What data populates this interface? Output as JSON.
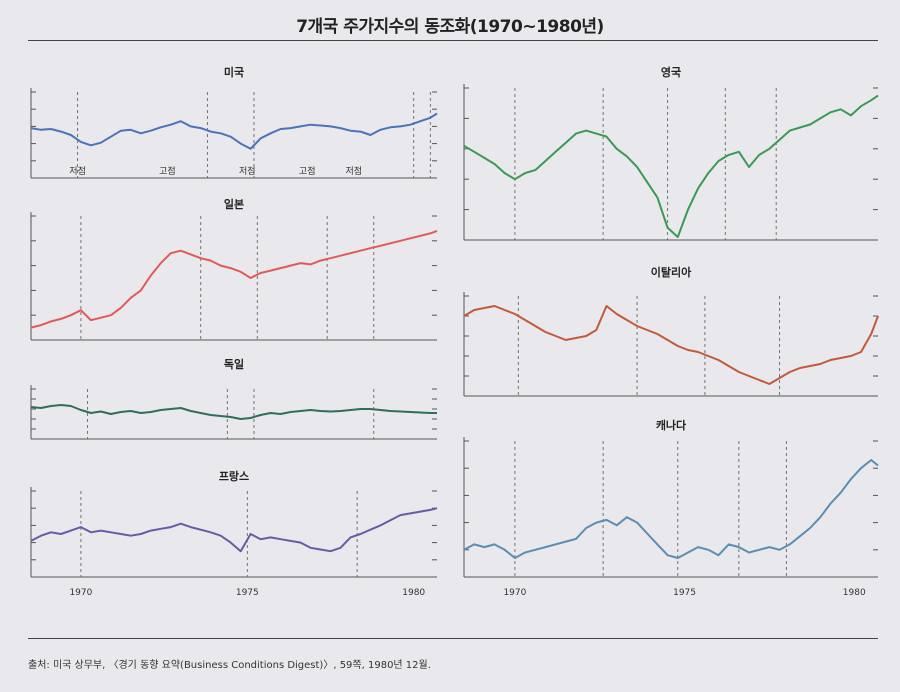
{
  "title": "7개국 주가지수의 동조화(1970~1980년)",
  "source": "출처: 미국 상무부, 〈경기 동향 요약(Business Conditions Digest)〉, 59쪽, 1980년 12월.",
  "colors": {
    "us": "#4c72b8",
    "japan": "#e05a5a",
    "germany": "#2f6e5a",
    "france": "#6a5aa6",
    "uk": "#3a9a55",
    "italy": "#c25a3a",
    "canada": "#5b8eb0"
  },
  "chart_data": [
    {
      "type": "line",
      "title": "미국",
      "x_range": [
        1968.5,
        1980.7
      ],
      "recession_lines": [
        1969.9,
        1973.8,
        1975.2,
        1980.0,
        1980.5,
        1981.0
      ],
      "phase_annotations": [
        {
          "x": 1969.9,
          "text": "저점"
        },
        {
          "x": 1972.6,
          "text": "고점"
        },
        {
          "x": 1975.0,
          "text": "저점"
        },
        {
          "x": 1976.8,
          "text": "고점"
        },
        {
          "x": 1978.2,
          "text": "저점"
        }
      ],
      "series": [
        {
          "x": [
            1968.5,
            1968.8,
            1969.1,
            1969.4,
            1969.7,
            1970.0,
            1970.3,
            1970.6,
            1970.9,
            1971.2,
            1971.5,
            1971.8,
            1972.1,
            1972.4,
            1972.7,
            1973.0,
            1973.3,
            1973.6,
            1973.9,
            1974.2,
            1974.5,
            1974.8,
            1975.1,
            1975.4,
            1975.7,
            1976.0,
            1976.3,
            1976.6,
            1976.9,
            1977.2,
            1977.5,
            1977.8,
            1978.1,
            1978.4,
            1978.7,
            1979.0,
            1979.3,
            1979.6,
            1979.9,
            1980.2,
            1980.5,
            1980.7
          ],
          "y": [
            58,
            56,
            57,
            54,
            50,
            42,
            38,
            41,
            48,
            55,
            56,
            52,
            55,
            59,
            62,
            66,
            60,
            58,
            54,
            52,
            48,
            40,
            34,
            46,
            52,
            57,
            58,
            60,
            62,
            61,
            60,
            58,
            55,
            54,
            50,
            56,
            59,
            60,
            62,
            66,
            70,
            75
          ]
        }
      ]
    },
    {
      "type": "line",
      "title": "일본",
      "x_range": [
        1968.5,
        1980.7
      ],
      "recession_lines": [
        1970.0,
        1973.6,
        1975.3,
        1977.4,
        1978.8
      ],
      "series": [
        {
          "x": [
            1968.5,
            1968.8,
            1969.1,
            1969.4,
            1969.7,
            1970.0,
            1970.3,
            1970.6,
            1970.9,
            1971.2,
            1971.5,
            1971.8,
            1972.1,
            1972.4,
            1972.7,
            1973.0,
            1973.3,
            1973.6,
            1973.9,
            1974.2,
            1974.5,
            1974.8,
            1975.1,
            1975.4,
            1975.7,
            1976.0,
            1976.3,
            1976.6,
            1976.9,
            1977.2,
            1977.5,
            1977.8,
            1978.1,
            1978.4,
            1978.7,
            1979.0,
            1979.3,
            1979.6,
            1979.9,
            1980.2,
            1980.5,
            1980.7
          ],
          "y": [
            10,
            12,
            15,
            17,
            20,
            24,
            16,
            18,
            20,
            26,
            34,
            40,
            52,
            62,
            70,
            72,
            69,
            66,
            64,
            60,
            58,
            55,
            50,
            54,
            56,
            58,
            60,
            62,
            61,
            64,
            66,
            68,
            70,
            72,
            74,
            76,
            78,
            80,
            82,
            84,
            86,
            88
          ]
        }
      ]
    },
    {
      "type": "line",
      "title": "독일",
      "x_range": [
        1968.5,
        1980.7
      ],
      "recession_lines": [
        1970.2,
        1974.4,
        1975.2,
        1978.8
      ],
      "series": [
        {
          "x": [
            1968.5,
            1968.8,
            1969.1,
            1969.4,
            1969.7,
            1970.0,
            1970.3,
            1970.6,
            1970.9,
            1971.2,
            1971.5,
            1971.8,
            1972.1,
            1972.4,
            1972.7,
            1973.0,
            1973.3,
            1973.6,
            1973.9,
            1974.2,
            1974.5,
            1974.8,
            1975.1,
            1975.4,
            1975.7,
            1976.0,
            1976.3,
            1976.6,
            1976.9,
            1977.2,
            1977.5,
            1977.8,
            1978.1,
            1978.4,
            1978.7,
            1979.0,
            1979.3,
            1979.6,
            1979.9,
            1980.2,
            1980.5,
            1980.7
          ],
          "y": [
            64,
            62,
            66,
            68,
            66,
            58,
            52,
            55,
            50,
            54,
            56,
            52,
            54,
            58,
            60,
            62,
            56,
            52,
            48,
            46,
            44,
            40,
            42,
            48,
            52,
            50,
            54,
            56,
            58,
            56,
            55,
            56,
            58,
            60,
            60,
            58,
            56,
            55,
            54,
            53,
            52,
            52
          ]
        }
      ]
    },
    {
      "type": "line",
      "title": "프랑스",
      "x_range": [
        1968.5,
        1980.7
      ],
      "recession_lines": [
        1970.0,
        1975.0,
        1978.3
      ],
      "series": [
        {
          "x": [
            1968.5,
            1968.8,
            1969.1,
            1969.4,
            1969.7,
            1970.0,
            1970.3,
            1970.6,
            1970.9,
            1971.2,
            1971.5,
            1971.8,
            1972.1,
            1972.4,
            1972.7,
            1973.0,
            1973.3,
            1973.6,
            1973.9,
            1974.2,
            1974.5,
            1974.8,
            1975.1,
            1975.4,
            1975.7,
            1976.0,
            1976.3,
            1976.6,
            1976.9,
            1977.2,
            1977.5,
            1977.8,
            1978.1,
            1978.4,
            1978.7,
            1979.0,
            1979.3,
            1979.6,
            1979.9,
            1980.2,
            1980.5,
            1980.7
          ],
          "y": [
            42,
            48,
            52,
            50,
            54,
            58,
            52,
            54,
            52,
            50,
            48,
            50,
            54,
            56,
            58,
            62,
            58,
            55,
            52,
            48,
            40,
            30,
            50,
            44,
            46,
            44,
            42,
            40,
            34,
            32,
            30,
            34,
            46,
            50,
            55,
            60,
            66,
            72,
            74,
            76,
            78,
            80
          ]
        }
      ]
    },
    {
      "type": "line",
      "title": "영국",
      "x_range": [
        1968.5,
        1980.7
      ],
      "recession_lines": [
        1970.0,
        1972.6,
        1974.5,
        1976.2,
        1977.7
      ],
      "series": [
        {
          "x": [
            1968.5,
            1968.8,
            1969.1,
            1969.4,
            1969.7,
            1970.0,
            1970.3,
            1970.6,
            1970.9,
            1971.2,
            1971.5,
            1971.8,
            1972.1,
            1972.4,
            1972.7,
            1973.0,
            1973.3,
            1973.6,
            1973.9,
            1974.2,
            1974.5,
            1974.8,
            1975.1,
            1975.4,
            1975.7,
            1976.0,
            1976.3,
            1976.6,
            1976.9,
            1977.2,
            1977.5,
            1977.8,
            1978.1,
            1978.4,
            1978.7,
            1979.0,
            1979.3,
            1979.6,
            1979.9,
            1980.2,
            1980.5,
            1980.7
          ],
          "y": [
            62,
            58,
            54,
            50,
            44,
            40,
            44,
            46,
            52,
            58,
            64,
            70,
            72,
            70,
            68,
            60,
            55,
            48,
            38,
            28,
            8,
            2,
            20,
            34,
            44,
            52,
            56,
            58,
            48,
            56,
            60,
            66,
            72,
            74,
            76,
            80,
            84,
            86,
            82,
            88,
            92,
            95
          ]
        }
      ]
    },
    {
      "type": "line",
      "title": "이탈리아",
      "x_range": [
        1968.5,
        1980.7
      ],
      "recession_lines": [
        1970.1,
        1973.6,
        1975.6,
        1977.8
      ],
      "series": [
        {
          "x": [
            1968.5,
            1968.8,
            1969.1,
            1969.4,
            1969.7,
            1970.0,
            1970.3,
            1970.6,
            1970.9,
            1971.2,
            1971.5,
            1971.8,
            1972.1,
            1972.4,
            1972.7,
            1973.0,
            1973.3,
            1973.6,
            1973.9,
            1974.2,
            1974.5,
            1974.8,
            1975.1,
            1975.4,
            1975.7,
            1976.0,
            1976.3,
            1976.6,
            1976.9,
            1977.2,
            1977.5,
            1977.8,
            1978.1,
            1978.4,
            1978.7,
            1979.0,
            1979.3,
            1979.6,
            1979.9,
            1980.2,
            1980.5,
            1980.7
          ],
          "y": [
            80,
            86,
            88,
            90,
            86,
            82,
            76,
            70,
            64,
            60,
            56,
            58,
            60,
            66,
            90,
            82,
            76,
            70,
            66,
            62,
            56,
            50,
            46,
            44,
            40,
            36,
            30,
            24,
            20,
            16,
            12,
            18,
            24,
            28,
            30,
            32,
            36,
            38,
            40,
            44,
            62,
            80
          ]
        }
      ]
    },
    {
      "type": "line",
      "title": "캐나다",
      "x_range": [
        1968.5,
        1980.7
      ],
      "recession_lines": [
        1970.0,
        1972.6,
        1974.8,
        1976.6,
        1978.0
      ],
      "series": [
        {
          "x": [
            1968.5,
            1968.8,
            1969.1,
            1969.4,
            1969.7,
            1970.0,
            1970.3,
            1970.6,
            1970.9,
            1971.2,
            1971.5,
            1971.8,
            1972.1,
            1972.4,
            1972.7,
            1973.0,
            1973.3,
            1973.6,
            1973.9,
            1974.2,
            1974.5,
            1974.8,
            1975.1,
            1975.4,
            1975.7,
            1976.0,
            1976.3,
            1976.6,
            1976.9,
            1977.2,
            1977.5,
            1977.8,
            1978.1,
            1978.4,
            1978.7,
            1979.0,
            1979.3,
            1979.6,
            1979.9,
            1980.2,
            1980.5,
            1980.7
          ],
          "y": [
            20,
            24,
            22,
            24,
            20,
            14,
            18,
            20,
            22,
            24,
            26,
            28,
            36,
            40,
            42,
            38,
            44,
            40,
            32,
            24,
            16,
            14,
            18,
            22,
            20,
            16,
            24,
            22,
            18,
            20,
            22,
            20,
            24,
            30,
            36,
            44,
            54,
            62,
            72,
            80,
            86,
            82
          ]
        }
      ]
    }
  ],
  "year_ticks": {
    "values": [
      1970,
      1975,
      1980
    ],
    "labels": [
      "1970",
      "1975",
      "1980"
    ]
  }
}
